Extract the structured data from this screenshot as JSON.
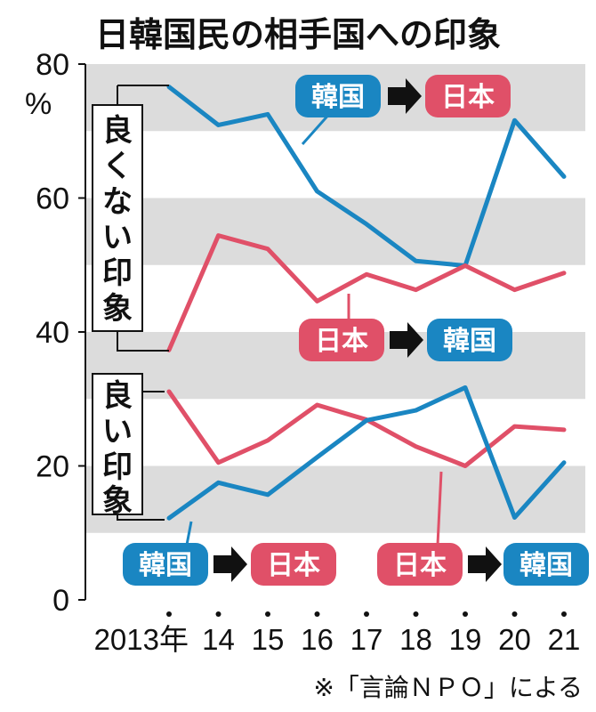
{
  "title": "日韓国民の相手国への印象",
  "source": "※「言論ＮＰＯ」による",
  "colors": {
    "korea": "#1a86c2",
    "japan": "#e05068",
    "band": "#dcdcdc",
    "arrow": "#111111"
  },
  "groups": {
    "negative": "良くない印象",
    "positive": "良い印象"
  },
  "badges": {
    "korea": "韓国",
    "japan": "日本"
  },
  "chart_data": {
    "type": "line",
    "title": "日韓国民の相手国への印象",
    "x": [
      "2013年",
      "14",
      "15",
      "16",
      "17",
      "18",
      "19",
      "20",
      "21"
    ],
    "ylim": [
      0,
      80
    ],
    "yticks": [
      0,
      20,
      40,
      60,
      80
    ],
    "yunit": "%",
    "grid": "alternating horizontal bands",
    "series": [
      {
        "name": "韓国→日本 良くない印象",
        "color": "korea",
        "values": [
          76.6,
          70.9,
          72.5,
          61.0,
          56.1,
          50.6,
          49.9,
          71.6,
          63.2
        ]
      },
      {
        "name": "日本→韓国 良くない印象",
        "color": "japan",
        "values": [
          37.3,
          54.4,
          52.4,
          44.6,
          48.6,
          46.3,
          49.9,
          46.3,
          48.8
        ]
      },
      {
        "name": "日本→韓国 良い印象",
        "color": "japan",
        "values": [
          31.1,
          20.5,
          23.8,
          29.1,
          26.9,
          22.9,
          20.0,
          25.9,
          25.4
        ]
      },
      {
        "name": "韓国→日本 良い印象",
        "color": "korea",
        "values": [
          12.2,
          17.5,
          15.7,
          21.3,
          26.8,
          28.3,
          31.7,
          12.3,
          20.5
        ]
      }
    ]
  }
}
